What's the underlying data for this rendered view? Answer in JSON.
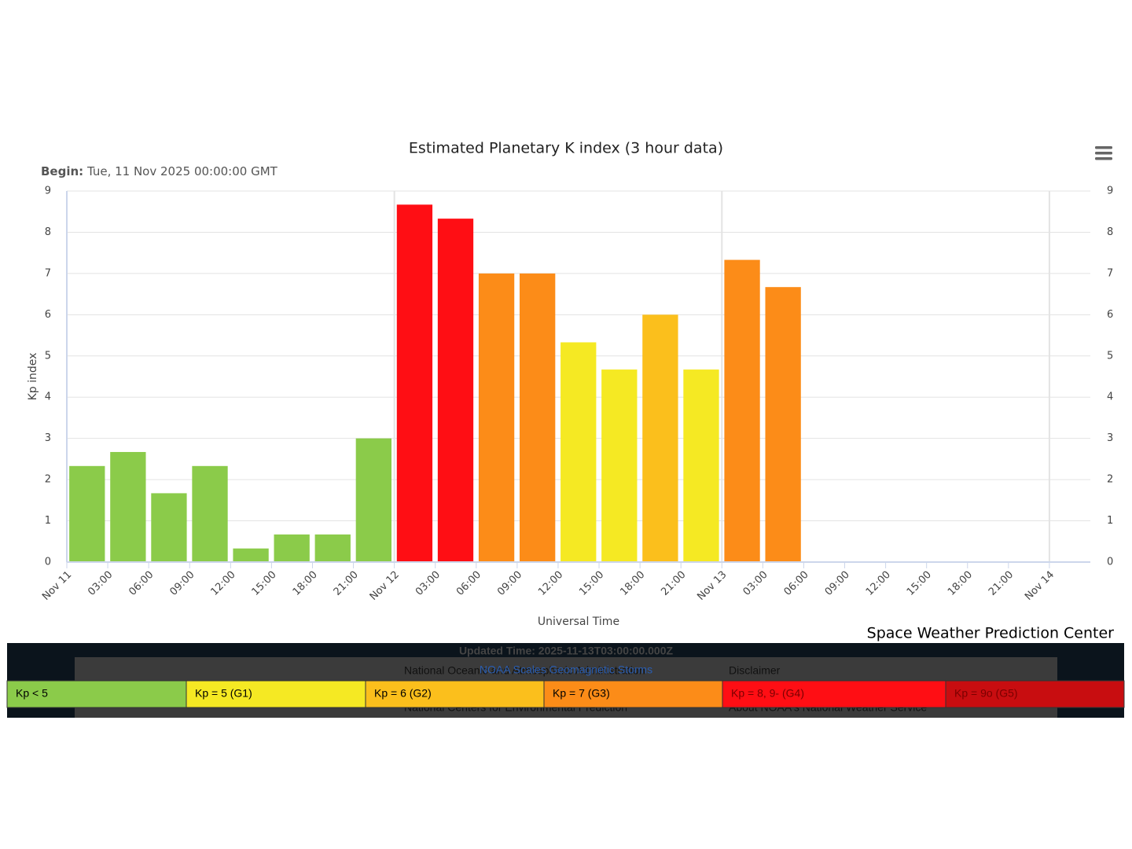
{
  "chart_data": {
    "type": "bar",
    "title": "Estimated Planetary K index (3 hour data)",
    "subtitle_label": "Begin:",
    "subtitle": "Tue, 11 Nov 2025 00:00:00 GMT",
    "y_axis_label": "Kp index",
    "x_axis_label": "Universal Time",
    "credit": "Space Weather Prediction Center",
    "x": [
      0,
      3,
      6,
      9,
      12,
      15,
      18,
      21,
      24,
      27,
      30,
      33,
      36,
      39,
      42,
      45,
      48,
      51
    ],
    "values": [
      2.33,
      2.67,
      1.67,
      2.33,
      0.33,
      0.67,
      0.67,
      3.0,
      8.67,
      8.33,
      7.0,
      7.0,
      5.33,
      4.67,
      6.0,
      4.67,
      7.33,
      6.67
    ],
    "colors": [
      "#8bcb4a",
      "#8bcb4a",
      "#8bcb4a",
      "#8bcb4a",
      "#8bcb4a",
      "#8bcb4a",
      "#8bcb4a",
      "#8bcb4a",
      "#ff0e14",
      "#ff0e14",
      "#fc8c18",
      "#fc8c18",
      "#f5e923",
      "#f5e923",
      "#fbbf1c",
      "#f5e923",
      "#fc8c18",
      "#fc8c18"
    ],
    "xlim": [
      0,
      75
    ],
    "xticks": [
      {
        "value": 0,
        "label": "Nov 11"
      },
      {
        "value": 3,
        "label": "03:00"
      },
      {
        "value": 6,
        "label": "06:00"
      },
      {
        "value": 9,
        "label": "09:00"
      },
      {
        "value": 12,
        "label": "12:00"
      },
      {
        "value": 15,
        "label": "15:00"
      },
      {
        "value": 18,
        "label": "18:00"
      },
      {
        "value": 21,
        "label": "21:00"
      },
      {
        "value": 24,
        "label": "Nov 12"
      },
      {
        "value": 27,
        "label": "03:00"
      },
      {
        "value": 30,
        "label": "06:00"
      },
      {
        "value": 33,
        "label": "09:00"
      },
      {
        "value": 36,
        "label": "12:00"
      },
      {
        "value": 39,
        "label": "15:00"
      },
      {
        "value": 42,
        "label": "18:00"
      },
      {
        "value": 45,
        "label": "21:00"
      },
      {
        "value": 48,
        "label": "Nov 13"
      },
      {
        "value": 51,
        "label": "03:00"
      },
      {
        "value": 54,
        "label": "06:00"
      },
      {
        "value": 57,
        "label": "09:00"
      },
      {
        "value": 60,
        "label": "12:00"
      },
      {
        "value": 63,
        "label": "15:00"
      },
      {
        "value": 66,
        "label": "18:00"
      },
      {
        "value": 69,
        "label": "21:00"
      },
      {
        "value": 72,
        "label": "Nov 14"
      }
    ],
    "day_lines": [
      24,
      48,
      72
    ],
    "ylim": [
      0,
      9
    ],
    "yticks": [
      0,
      1,
      2,
      3,
      4,
      5,
      6,
      7,
      8,
      9
    ],
    "grid": true,
    "legend": [
      {
        "name": "Kp < 5",
        "color": "#8bcb4a"
      },
      {
        "name": "Kp = 5 (G1)",
        "color": "#f5e923"
      },
      {
        "name": "Kp = 6 (G2)",
        "color": "#fbbf1c"
      },
      {
        "name": "Kp = 7 (G3)",
        "color": "#fc8c18"
      },
      {
        "name": "Kp = 8, 9- (G4)",
        "color": "#ff0e14"
      },
      {
        "name": "Kp = 9o (G5)",
        "color": "#c80d10"
      }
    ]
  },
  "footer": {
    "updated": "Updated Time: 2025-11-13T03:00:00.000Z",
    "link": "NOAA Scales Geomagnetic Storms",
    "left_top": "National Oceanic and Atmospheric Administration",
    "left_bottom": "National Centers for Environmental Prediction",
    "right_top": "Disclaimer",
    "right_bottom": "About NOAA's National Weather Service"
  }
}
